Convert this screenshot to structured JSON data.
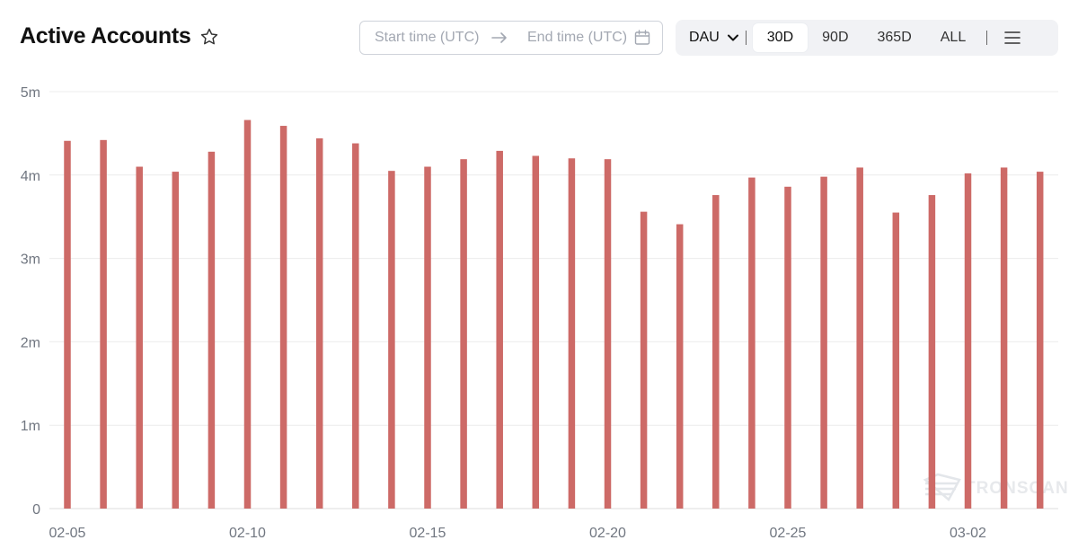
{
  "header": {
    "title": "Active Accounts"
  },
  "date_range": {
    "start_placeholder": "Start time (UTC)",
    "end_placeholder": "End time (UTC)"
  },
  "controls": {
    "metric": "DAU",
    "ranges": [
      "30D",
      "90D",
      "365D",
      "ALL"
    ],
    "active_range": "30D"
  },
  "watermark": "TRONSCAN",
  "colors": {
    "bar": "#cd6a67",
    "grid": "#ececec",
    "accent_active_bg": "#ffffff",
    "panel_bg": "#f1f2f5"
  },
  "icons": {
    "favorite": "star-outline-icon",
    "arrow": "arrow-right-icon",
    "calendar": "calendar-icon",
    "dropdown": "chevron-down-icon",
    "menu": "hamburger-menu-icon"
  },
  "chart_data": {
    "type": "bar",
    "title": "",
    "xlabel": "",
    "ylabel": "",
    "ylim": [
      0,
      5000000
    ],
    "yticks": [
      0,
      1000000,
      2000000,
      3000000,
      4000000,
      5000000
    ],
    "ytick_labels": [
      "0",
      "1m",
      "2m",
      "3m",
      "4m",
      "5m"
    ],
    "xtick_labels": [
      "02-05",
      "02-10",
      "02-15",
      "02-20",
      "02-25",
      "03-02"
    ],
    "grid": true,
    "categories": [
      "02-05",
      "02-06",
      "02-07",
      "02-08",
      "02-09",
      "02-10",
      "02-11",
      "02-12",
      "02-13",
      "02-14",
      "02-15",
      "02-16",
      "02-17",
      "02-18",
      "02-19",
      "02-20",
      "02-21",
      "02-22",
      "02-23",
      "02-24",
      "02-25",
      "02-26",
      "02-27",
      "02-28",
      "03-01",
      "03-02",
      "03-03",
      "03-04"
    ],
    "values": [
      4410000,
      4420000,
      4100000,
      4040000,
      4280000,
      4660000,
      4590000,
      4440000,
      4380000,
      4050000,
      4100000,
      4190000,
      4290000,
      4230000,
      4200000,
      4190000,
      3560000,
      3410000,
      3760000,
      3970000,
      3860000,
      3980000,
      4090000,
      3550000,
      3760000,
      4020000,
      4090000,
      4040000
    ]
  }
}
